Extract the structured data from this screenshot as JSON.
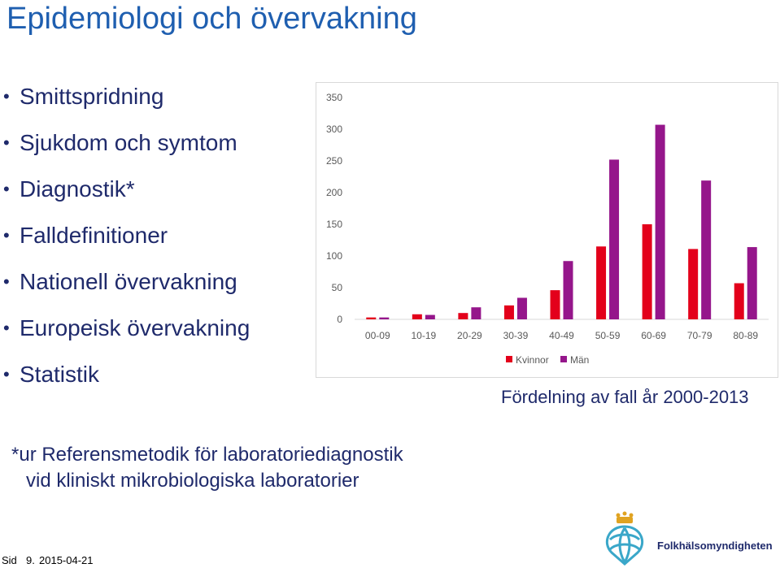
{
  "title": "Epidemiologi och övervakning",
  "bullets": [
    "Smittspridning",
    "Sjukdom och symtom",
    "Diagnostik*",
    "Falldefinitioner",
    "Nationell övervakning",
    "Europeisk övervakning",
    "Statistik"
  ],
  "caption": "Fördelning av fall år 2000-2013",
  "footnote": {
    "line1": "*ur Referensmetodik för laboratoriediagnostik",
    "line2": "vid kliniskt mikrobiologiska laboratorier"
  },
  "footer": {
    "sid": "Sid",
    "page": "9.",
    "date": "2015-04-21"
  },
  "logo": {
    "text": "Folkhälsomyndigheten"
  },
  "colors": {
    "kvinnor": "#e3001b",
    "man": "#95168b",
    "title": "#1f5fb0",
    "text": "#1f2a6b"
  },
  "chart_data": {
    "type": "bar",
    "categories": [
      "00-09",
      "10-19",
      "20-29",
      "30-39",
      "40-49",
      "50-59",
      "60-69",
      "70-79",
      "80-89"
    ],
    "series": [
      {
        "name": "Kvinnor",
        "values": [
          3,
          8,
          10,
          22,
          46,
          115,
          150,
          111,
          57
        ]
      },
      {
        "name": "Män",
        "values": [
          3,
          7,
          19,
          34,
          92,
          252,
          307,
          219,
          114
        ]
      }
    ],
    "yticks": [
      0,
      50,
      100,
      150,
      200,
      250,
      300,
      350
    ],
    "ylim": [
      0,
      350
    ],
    "legend": "bottom",
    "grid": false
  }
}
